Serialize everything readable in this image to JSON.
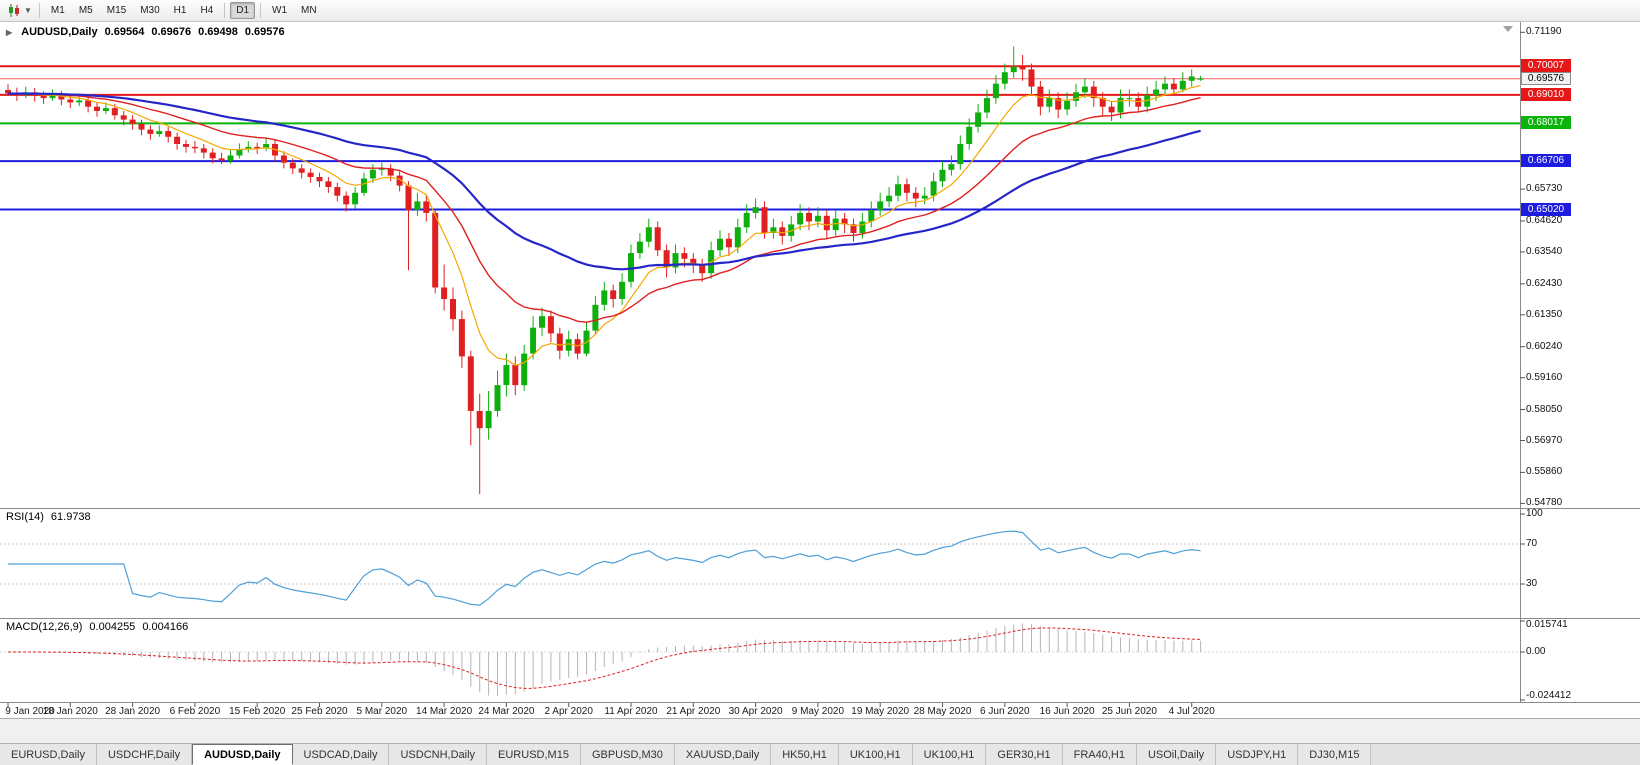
{
  "toolbar": {
    "timeframes": [
      "M1",
      "M5",
      "M15",
      "M30",
      "H1",
      "H4",
      "D1",
      "W1",
      "MN"
    ],
    "active_timeframe": "D1",
    "group_separators_after": [
      "H4",
      "D1"
    ],
    "icons": {
      "chart_type": "candlestick-chart-icon",
      "menu_caret": "chevron-down-icon"
    }
  },
  "window": {
    "symbol_label": "AUDUSD,Daily",
    "ohlc": [
      "0.69564",
      "0.69676",
      "0.69498",
      "0.69576"
    ]
  },
  "price_axis": {
    "labels": [
      {
        "text": "0.71190",
        "price": 0.7119
      },
      {
        "text": "0.65730",
        "price": 0.6573
      },
      {
        "text": "0.64620",
        "price": 0.6462
      },
      {
        "text": "0.63540",
        "price": 0.6354
      },
      {
        "text": "0.62430",
        "price": 0.6243
      },
      {
        "text": "0.61350",
        "price": 0.6135
      },
      {
        "text": "0.60240",
        "price": 0.6024
      },
      {
        "text": "0.59160",
        "price": 0.5916
      },
      {
        "text": "0.58050",
        "price": 0.5805
      },
      {
        "text": "0.56970",
        "price": 0.5697
      },
      {
        "text": "0.55860",
        "price": 0.5586
      },
      {
        "text": "0.54780",
        "price": 0.5478
      }
    ],
    "tags": [
      {
        "text": "0.70007",
        "price": 0.70007,
        "color": "#e81717",
        "style": "line"
      },
      {
        "text": "0.69576",
        "price": 0.69576,
        "color": "#f2f2f2",
        "style": "current"
      },
      {
        "text": "0.69010",
        "price": 0.6901,
        "color": "#e81717",
        "style": "line"
      },
      {
        "text": "0.68017",
        "price": 0.68017,
        "color": "#0ab40a",
        "style": "line"
      },
      {
        "text": "0.66706",
        "price": 0.66706,
        "color": "#1d1de0",
        "style": "line"
      },
      {
        "text": "0.65020",
        "price": 0.6502,
        "color": "#1d1de0",
        "style": "line"
      }
    ]
  },
  "chart_data": {
    "type": "candlestick",
    "symbol": "AUDUSD",
    "period": "Daily",
    "price_range": [
      0.5462,
      0.7155
    ],
    "colors": {
      "up": "#0fae0f",
      "down": "#e02020"
    },
    "hlines": [
      {
        "name": "resistance-line-1",
        "price": 0.70007,
        "color": "#e81717",
        "width": 2
      },
      {
        "name": "bid-price-line",
        "price": 0.69576,
        "color": "#f26060",
        "width": 1
      },
      {
        "name": "resistance-line-2",
        "price": 0.6901,
        "color": "#e81717",
        "width": 2
      },
      {
        "name": "support-line-green",
        "price": 0.68017,
        "color": "#0ab40a",
        "width": 2
      },
      {
        "name": "support-line-blue-1",
        "price": 0.66706,
        "color": "#1d1de0",
        "width": 2
      },
      {
        "name": "support-line-blue-2",
        "price": 0.6502,
        "color": "#1d1de0",
        "width": 2
      }
    ],
    "moving_averages": [
      {
        "name": "fast-ma-line",
        "period": 8,
        "color": "#f5a800",
        "width": 1.2
      },
      {
        "name": "medium-ma-line",
        "period": 20,
        "color": "#e02020",
        "width": 1.4
      },
      {
        "name": "slow-ma-line",
        "period": 45,
        "color": "#2626c8",
        "width": 2.2
      }
    ],
    "x_labels": [
      "9 Jan 2020",
      "18 Jan 2020",
      "28 Jan 2020",
      "6 Feb 2020",
      "15 Feb 2020",
      "25 Feb 2020",
      "5 Mar 2020",
      "14 Mar 2020",
      "24 Mar 2020",
      "2 Apr 2020",
      "11 Apr 2020",
      "21 Apr 2020",
      "30 Apr 2020",
      "9 May 2020",
      "19 May 2020",
      "28 May 2020",
      "6 Jun 2020",
      "16 Jun 2020",
      "25 Jun 2020",
      "4 Jul 2020"
    ],
    "candles": [
      [
        0.6918,
        0.6938,
        0.6896,
        0.6906
      ],
      [
        0.6906,
        0.6926,
        0.688,
        0.69
      ],
      [
        0.69,
        0.693,
        0.689,
        0.691
      ],
      [
        0.691,
        0.6925,
        0.6878,
        0.6898
      ],
      [
        0.6898,
        0.6913,
        0.687,
        0.689
      ],
      [
        0.689,
        0.692,
        0.688,
        0.69
      ],
      [
        0.69,
        0.6915,
        0.6865,
        0.6885
      ],
      [
        0.6885,
        0.69,
        0.6855,
        0.6875
      ],
      [
        0.6875,
        0.6902,
        0.6862,
        0.6882
      ],
      [
        0.6882,
        0.6897,
        0.684,
        0.686
      ],
      [
        0.686,
        0.6875,
        0.6825,
        0.6845
      ],
      [
        0.6845,
        0.6875,
        0.6835,
        0.6855
      ],
      [
        0.6855,
        0.687,
        0.6815,
        0.683
      ],
      [
        0.683,
        0.6845,
        0.6795,
        0.6815
      ],
      [
        0.6815,
        0.683,
        0.678,
        0.68
      ],
      [
        0.68,
        0.6815,
        0.676,
        0.678
      ],
      [
        0.678,
        0.6795,
        0.6745,
        0.6765
      ],
      [
        0.6765,
        0.6795,
        0.6755,
        0.6775
      ],
      [
        0.6775,
        0.679,
        0.6735,
        0.6755
      ],
      [
        0.6755,
        0.677,
        0.671,
        0.673
      ],
      [
        0.673,
        0.6745,
        0.67,
        0.672
      ],
      [
        0.672,
        0.674,
        0.6698,
        0.6715
      ],
      [
        0.6715,
        0.673,
        0.668,
        0.67
      ],
      [
        0.67,
        0.6715,
        0.6662,
        0.668
      ],
      [
        0.668,
        0.67,
        0.666,
        0.6672
      ],
      [
        0.6672,
        0.671,
        0.6662,
        0.669
      ],
      [
        0.669,
        0.6732,
        0.668,
        0.6712
      ],
      [
        0.6712,
        0.674,
        0.67,
        0.672
      ],
      [
        0.672,
        0.6735,
        0.6695,
        0.6715
      ],
      [
        0.6715,
        0.675,
        0.6705,
        0.673
      ],
      [
        0.673,
        0.6745,
        0.667,
        0.669
      ],
      [
        0.669,
        0.6705,
        0.6645,
        0.6665
      ],
      [
        0.6665,
        0.668,
        0.6625,
        0.6645
      ],
      [
        0.6645,
        0.666,
        0.661,
        0.663
      ],
      [
        0.663,
        0.6645,
        0.6595,
        0.6615
      ],
      [
        0.6615,
        0.663,
        0.658,
        0.66
      ],
      [
        0.66,
        0.6615,
        0.656,
        0.658
      ],
      [
        0.658,
        0.6595,
        0.653,
        0.655
      ],
      [
        0.655,
        0.6565,
        0.6495,
        0.652
      ],
      [
        0.652,
        0.658,
        0.6505,
        0.656
      ],
      [
        0.656,
        0.663,
        0.655,
        0.661
      ],
      [
        0.661,
        0.666,
        0.6595,
        0.664
      ],
      [
        0.664,
        0.6665,
        0.662,
        0.6645
      ],
      [
        0.6645,
        0.666,
        0.66,
        0.662
      ],
      [
        0.662,
        0.6635,
        0.6565,
        0.6585
      ],
      [
        0.6585,
        0.66,
        0.629,
        0.65
      ],
      [
        0.65,
        0.656,
        0.648,
        0.653
      ],
      [
        0.653,
        0.6555,
        0.646,
        0.649
      ],
      [
        0.649,
        0.65,
        0.621,
        0.623
      ],
      [
        0.623,
        0.631,
        0.615,
        0.619
      ],
      [
        0.619,
        0.623,
        0.608,
        0.612
      ],
      [
        0.612,
        0.615,
        0.595,
        0.599
      ],
      [
        0.599,
        0.601,
        0.568,
        0.58
      ],
      [
        0.58,
        0.586,
        0.551,
        0.574
      ],
      [
        0.574,
        0.587,
        0.57,
        0.58
      ],
      [
        0.58,
        0.594,
        0.578,
        0.589
      ],
      [
        0.589,
        0.6,
        0.585,
        0.596
      ],
      [
        0.596,
        0.599,
        0.5855,
        0.589
      ],
      [
        0.589,
        0.603,
        0.587,
        0.6
      ],
      [
        0.6,
        0.613,
        0.598,
        0.609
      ],
      [
        0.609,
        0.616,
        0.606,
        0.613
      ],
      [
        0.613,
        0.615,
        0.604,
        0.607
      ],
      [
        0.607,
        0.609,
        0.598,
        0.601
      ],
      [
        0.601,
        0.608,
        0.599,
        0.605
      ],
      [
        0.605,
        0.607,
        0.598,
        0.6
      ],
      [
        0.6,
        0.611,
        0.599,
        0.608
      ],
      [
        0.608,
        0.62,
        0.607,
        0.617
      ],
      [
        0.617,
        0.625,
        0.615,
        0.622
      ],
      [
        0.622,
        0.624,
        0.616,
        0.619
      ],
      [
        0.619,
        0.628,
        0.617,
        0.625
      ],
      [
        0.625,
        0.638,
        0.623,
        0.635
      ],
      [
        0.635,
        0.642,
        0.633,
        0.639
      ],
      [
        0.639,
        0.647,
        0.637,
        0.644
      ],
      [
        0.644,
        0.646,
        0.634,
        0.636
      ],
      [
        0.636,
        0.638,
        0.6265,
        0.63
      ],
      [
        0.63,
        0.638,
        0.628,
        0.635
      ],
      [
        0.635,
        0.637,
        0.63,
        0.633
      ],
      [
        0.633,
        0.635,
        0.628,
        0.631
      ],
      [
        0.631,
        0.633,
        0.625,
        0.628
      ],
      [
        0.628,
        0.639,
        0.626,
        0.636
      ],
      [
        0.636,
        0.643,
        0.634,
        0.64
      ],
      [
        0.64,
        0.642,
        0.634,
        0.637
      ],
      [
        0.637,
        0.647,
        0.635,
        0.644
      ],
      [
        0.644,
        0.652,
        0.642,
        0.649
      ],
      [
        0.649,
        0.654,
        0.647,
        0.651
      ],
      [
        0.651,
        0.653,
        0.64,
        0.642
      ],
      [
        0.642,
        0.647,
        0.64,
        0.644
      ],
      [
        0.644,
        0.646,
        0.638,
        0.641
      ],
      [
        0.641,
        0.648,
        0.639,
        0.645
      ],
      [
        0.645,
        0.652,
        0.643,
        0.649
      ],
      [
        0.649,
        0.651,
        0.643,
        0.646
      ],
      [
        0.646,
        0.651,
        0.644,
        0.648
      ],
      [
        0.648,
        0.65,
        0.64,
        0.643
      ],
      [
        0.643,
        0.65,
        0.641,
        0.647
      ],
      [
        0.647,
        0.649,
        0.642,
        0.645
      ],
      [
        0.645,
        0.647,
        0.639,
        0.642
      ],
      [
        0.642,
        0.649,
        0.64,
        0.646
      ],
      [
        0.646,
        0.653,
        0.644,
        0.65
      ],
      [
        0.65,
        0.656,
        0.648,
        0.653
      ],
      [
        0.653,
        0.658,
        0.651,
        0.655
      ],
      [
        0.655,
        0.662,
        0.653,
        0.659
      ],
      [
        0.659,
        0.661,
        0.653,
        0.656
      ],
      [
        0.656,
        0.658,
        0.651,
        0.654
      ],
      [
        0.654,
        0.658,
        0.652,
        0.655
      ],
      [
        0.655,
        0.663,
        0.653,
        0.66
      ],
      [
        0.66,
        0.667,
        0.658,
        0.664
      ],
      [
        0.664,
        0.669,
        0.662,
        0.666
      ],
      [
        0.666,
        0.676,
        0.664,
        0.673
      ],
      [
        0.673,
        0.682,
        0.671,
        0.679
      ],
      [
        0.679,
        0.687,
        0.677,
        0.684
      ],
      [
        0.684,
        0.692,
        0.682,
        0.689
      ],
      [
        0.689,
        0.697,
        0.687,
        0.694
      ],
      [
        0.694,
        0.701,
        0.692,
        0.698
      ],
      [
        0.698,
        0.707,
        0.696,
        0.7
      ],
      [
        0.7,
        0.704,
        0.695,
        0.699
      ],
      [
        0.699,
        0.701,
        0.69,
        0.693
      ],
      [
        0.693,
        0.695,
        0.683,
        0.686
      ],
      [
        0.686,
        0.692,
        0.684,
        0.689
      ],
      [
        0.689,
        0.691,
        0.682,
        0.685
      ],
      [
        0.685,
        0.691,
        0.683,
        0.688
      ],
      [
        0.688,
        0.694,
        0.686,
        0.691
      ],
      [
        0.691,
        0.696,
        0.689,
        0.693
      ],
      [
        0.693,
        0.695,
        0.686,
        0.689
      ],
      [
        0.689,
        0.691,
        0.683,
        0.686
      ],
      [
        0.686,
        0.688,
        0.681,
        0.684
      ],
      [
        0.684,
        0.692,
        0.682,
        0.689
      ],
      [
        0.689,
        0.692,
        0.686,
        0.689
      ],
      [
        0.689,
        0.691,
        0.684,
        0.686
      ],
      [
        0.686,
        0.693,
        0.684,
        0.69
      ],
      [
        0.69,
        0.695,
        0.688,
        0.692
      ],
      [
        0.692,
        0.6965,
        0.69,
        0.694
      ],
      [
        0.694,
        0.696,
        0.69,
        0.692
      ],
      [
        0.692,
        0.698,
        0.691,
        0.695
      ],
      [
        0.695,
        0.699,
        0.693,
        0.6965
      ],
      [
        0.69564,
        0.69676,
        0.69498,
        0.69576
      ]
    ],
    "indicators": {
      "rsi": {
        "label": "RSI(14)",
        "value": "61.9738",
        "color": "#4f9fd8",
        "levels": [
          100,
          70,
          30
        ],
        "axis_labels": [
          "100",
          "70",
          "30"
        ]
      },
      "macd": {
        "label": "MACD(12,26,9)",
        "main_value": "0.004255",
        "signal_value": "0.004166",
        "histogram_color": "#b4b4b4",
        "signal_color": "#e02020",
        "axis_labels": [
          "0.015741",
          "0.00",
          "-0.024412"
        ],
        "range": [
          -0.024412,
          0.015741
        ]
      }
    }
  },
  "tabs": {
    "items": [
      "EURUSD,Daily",
      "USDCHF,Daily",
      "AUDUSD,Daily",
      "USDCAD,Daily",
      "USDCNH,Daily",
      "EURUSD,M15",
      "GBPUSD,M30",
      "XAUUSD,Daily",
      "HK50,H1",
      "UK100,H1",
      "UK100,H1",
      "GER30,H1",
      "FRA40,H1",
      "USOil,Daily",
      "USDJPY,H1",
      "DJ30,M15"
    ],
    "active_index": 2
  }
}
